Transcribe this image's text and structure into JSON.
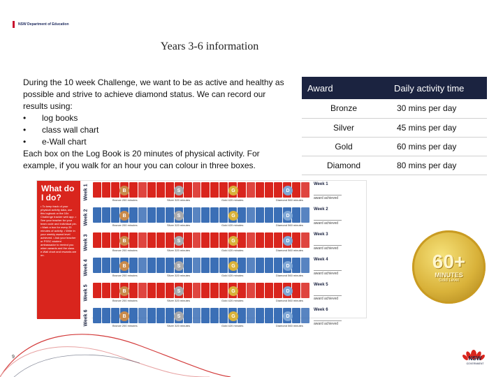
{
  "header": {
    "department": "NSW Department of Education"
  },
  "title": "Years 3-6 information",
  "body": {
    "intro": "During the 10 week Challenge, we want to be as active and healthy as possible and strive to achieve diamond status. We can record our results using:",
    "bullets": [
      "log books",
      "class wall chart",
      "e-Wall chart"
    ],
    "bullet_symbol": "•",
    "outro": "Each box on the Log Book is 20 minutes of physical activity. For example, if you walk for an hour you can colour in three boxes."
  },
  "award_table": {
    "headers": [
      "Award",
      "Daily activity time"
    ],
    "rows": [
      [
        "Bronze",
        "30 mins per day"
      ],
      [
        "Silver",
        "45 mins per day"
      ],
      [
        "Gold",
        "60 mins per day"
      ],
      [
        "Diamond",
        "80 mins per day"
      ]
    ]
  },
  "logbook": {
    "title": "What do I do?",
    "notes": "• To keep track of your physical activity data, use this logbook or the 10x Challenge tracker web app. • See your teacher for your team code and individual pin. • Mark a box for every 20 minutes of activity. • Write in your weekly award level achieved. • Ask your teacher or PSSC student ambassador to remind you when awards and the class e-Wall chart and rewards are on.",
    "weeks": [
      "Week 1",
      "Week 2",
      "Week 3",
      "Week 4",
      "Week 5",
      "Week 6"
    ],
    "medal_labels": [
      "Bronze 200 minutes",
      "Silver 320 minutes",
      "Gold 420 minutes",
      "Diamond 560 minutes"
    ],
    "medal_letters": [
      "B",
      "S",
      "G",
      "D"
    ],
    "award_tag": "award achieved"
  },
  "gold_medal": {
    "big": "60+",
    "small": "MINUTES",
    "sub": "Gold Level"
  },
  "page_number": "9",
  "logo": {
    "name": "NSW",
    "sub": "GOVERNMENT"
  },
  "colors": {
    "navy": "#1b2340",
    "red": "#d9251d",
    "week_colors": [
      "#d9251d",
      "#3b6fb6",
      "#d9251d",
      "#3b6fb6",
      "#d9251d",
      "#3b6fb6"
    ],
    "medal_colors": [
      "#c98a4a",
      "#a7a9ad",
      "#d9b23a",
      "#7fa7d6"
    ]
  }
}
